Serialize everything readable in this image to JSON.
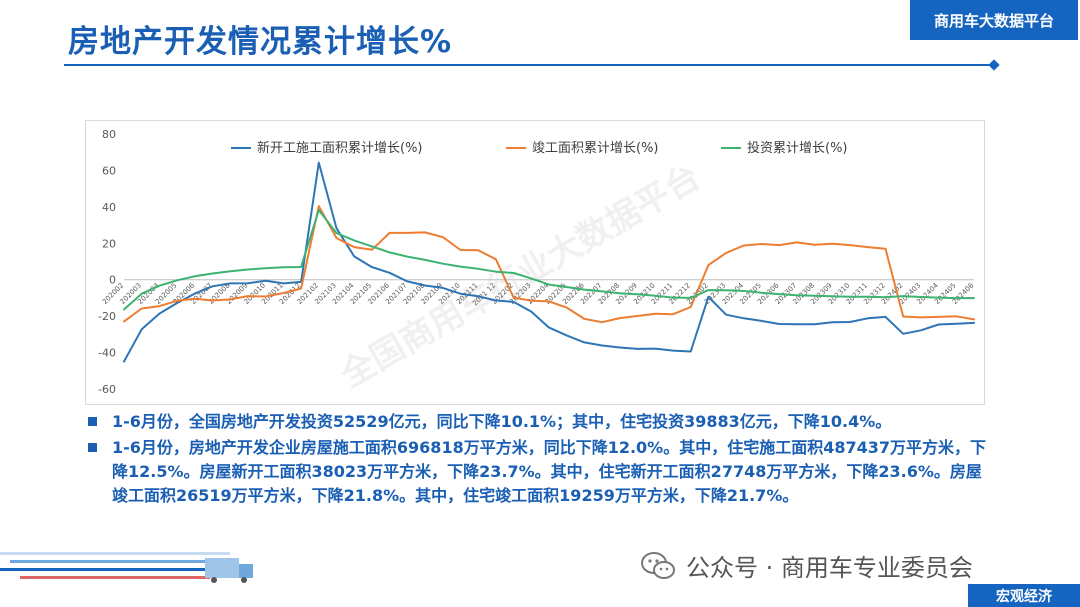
{
  "header": {
    "title": "房地产开发情况累计增长%",
    "brand": "商用车大数据平台"
  },
  "chart_data": {
    "type": "line",
    "ylim": [
      -60,
      80
    ],
    "yticks": [
      "80",
      "60",
      "40",
      "20",
      "0",
      "-20",
      "-40",
      "-60"
    ],
    "x": [
      "202002",
      "202003",
      "202004",
      "202005",
      "202006",
      "202007",
      "202008",
      "202009",
      "202010",
      "202011",
      "202012",
      "202102",
      "202103",
      "202104",
      "202105",
      "202106",
      "202107",
      "202108",
      "202109",
      "202110",
      "202111",
      "202112",
      "202202",
      "202203",
      "202204",
      "202205",
      "202206",
      "202207",
      "202208",
      "202209",
      "202210",
      "202211",
      "202212",
      "202302",
      "202303",
      "202304",
      "202305",
      "202306",
      "202307",
      "202308",
      "202309",
      "202310",
      "202311",
      "202312",
      "202402",
      "202403",
      "202404",
      "202405",
      "202406"
    ],
    "xtick_labels": [
      "202002",
      "202003",
      "202004",
      "202005",
      "202006",
      "202007",
      "202008",
      "202009",
      "202010",
      "202011",
      "202012",
      "202102",
      "202103",
      "202104",
      "202105",
      "202106",
      "202107",
      "202108",
      "202109",
      "202110",
      "202111",
      "2021 12",
      "202202",
      "202203",
      "202204",
      "202205",
      "202206",
      "202207",
      "202208",
      "202209",
      "202210",
      "202211",
      "202212",
      "202302",
      "202303",
      "202304",
      "202305",
      "202306",
      "202307",
      "202308",
      "202309",
      "202310",
      "202311",
      "202312",
      "202402",
      "202403",
      "202404",
      "202405",
      "202406"
    ],
    "series": [
      {
        "name": "新开工施工面积累计增长(%)",
        "color": "#2e75b6",
        "values": [
          -44.9,
          -27.2,
          -18.6,
          -12.8,
          -7.6,
          -3.6,
          -2.0,
          -1.9,
          -0.6,
          -2.0,
          -1.2,
          64.3,
          28.2,
          12.8,
          6.9,
          3.8,
          -0.9,
          -3.2,
          -4.5,
          -7.7,
          -9.1,
          -11.4,
          -12.2,
          -17.5,
          -26.3,
          -30.6,
          -34.4,
          -36.1,
          -37.2,
          -38.0,
          -37.8,
          -38.9,
          -39.4,
          -9.4,
          -19.2,
          -21.2,
          -22.6,
          -24.3,
          -24.5,
          -24.4,
          -23.4,
          -23.2,
          -21.2,
          -20.4,
          -29.7,
          -27.8,
          -24.6,
          -24.2,
          -23.7
        ]
      },
      {
        "name": "竣工面积累计增长(%)",
        "color": "#ed7d31",
        "values": [
          -22.9,
          -15.8,
          -14.5,
          -11.6,
          -10.5,
          -11.4,
          -10.8,
          -9.0,
          -9.2,
          -7.3,
          -4.9,
          40.4,
          22.9,
          17.9,
          16.4,
          25.7,
          25.7,
          26.0,
          23.4,
          16.3,
          16.2,
          11.2,
          -9.8,
          -11.5,
          -11.9,
          -15.3,
          -21.5,
          -23.3,
          -21.1,
          -19.9,
          -18.7,
          -19.0,
          -15.0,
          8.0,
          14.7,
          18.8,
          19.6,
          19.0,
          20.5,
          19.2,
          19.8,
          19.0,
          17.9,
          17.0,
          -20.2,
          -20.7,
          -20.4,
          -20.1,
          -21.8
        ]
      },
      {
        "name": "投资累计增长(%)",
        "color": "#3cb371",
        "values": [
          -16.3,
          -7.7,
          -3.3,
          -0.3,
          1.9,
          3.4,
          4.6,
          5.6,
          6.3,
          6.8,
          7.0,
          38.3,
          25.6,
          21.6,
          18.3,
          15.0,
          12.7,
          10.9,
          8.8,
          7.2,
          6.0,
          4.4,
          3.7,
          0.7,
          -2.7,
          -4.0,
          -5.4,
          -6.4,
          -7.4,
          -8.0,
          -8.8,
          -9.8,
          -10.0,
          -5.7,
          -5.8,
          -6.2,
          -7.2,
          -7.9,
          -8.5,
          -8.8,
          -9.1,
          -9.3,
          -9.4,
          -9.6,
          -9.0,
          -9.5,
          -9.8,
          -10.1,
          -10.1
        ]
      }
    ],
    "watermark": "全国商用车行业大数据平台"
  },
  "bullets": [
    "1-6月份，全国房地产开发投资52529亿元，同比下降10.1%；其中，住宅投资39883亿元，下降10.4%。",
    "1-6月份，房地产开发企业房屋施工面积696818万平方米，同比下降12.0%。其中，住宅施工面积487437万平方米，下降12.5%。房屋新开工面积38023万平方米，下降23.7%。其中，住宅新开工面积27748万平方米，下降23.6%。房屋竣工面积26519万平方米，下降21.8%。其中，住宅竣工面积19259万平方米，下降21.7%。"
  ],
  "footer": {
    "wechat_label": "公众号 · 商用车专业委员会",
    "tag": "宏观经济"
  }
}
